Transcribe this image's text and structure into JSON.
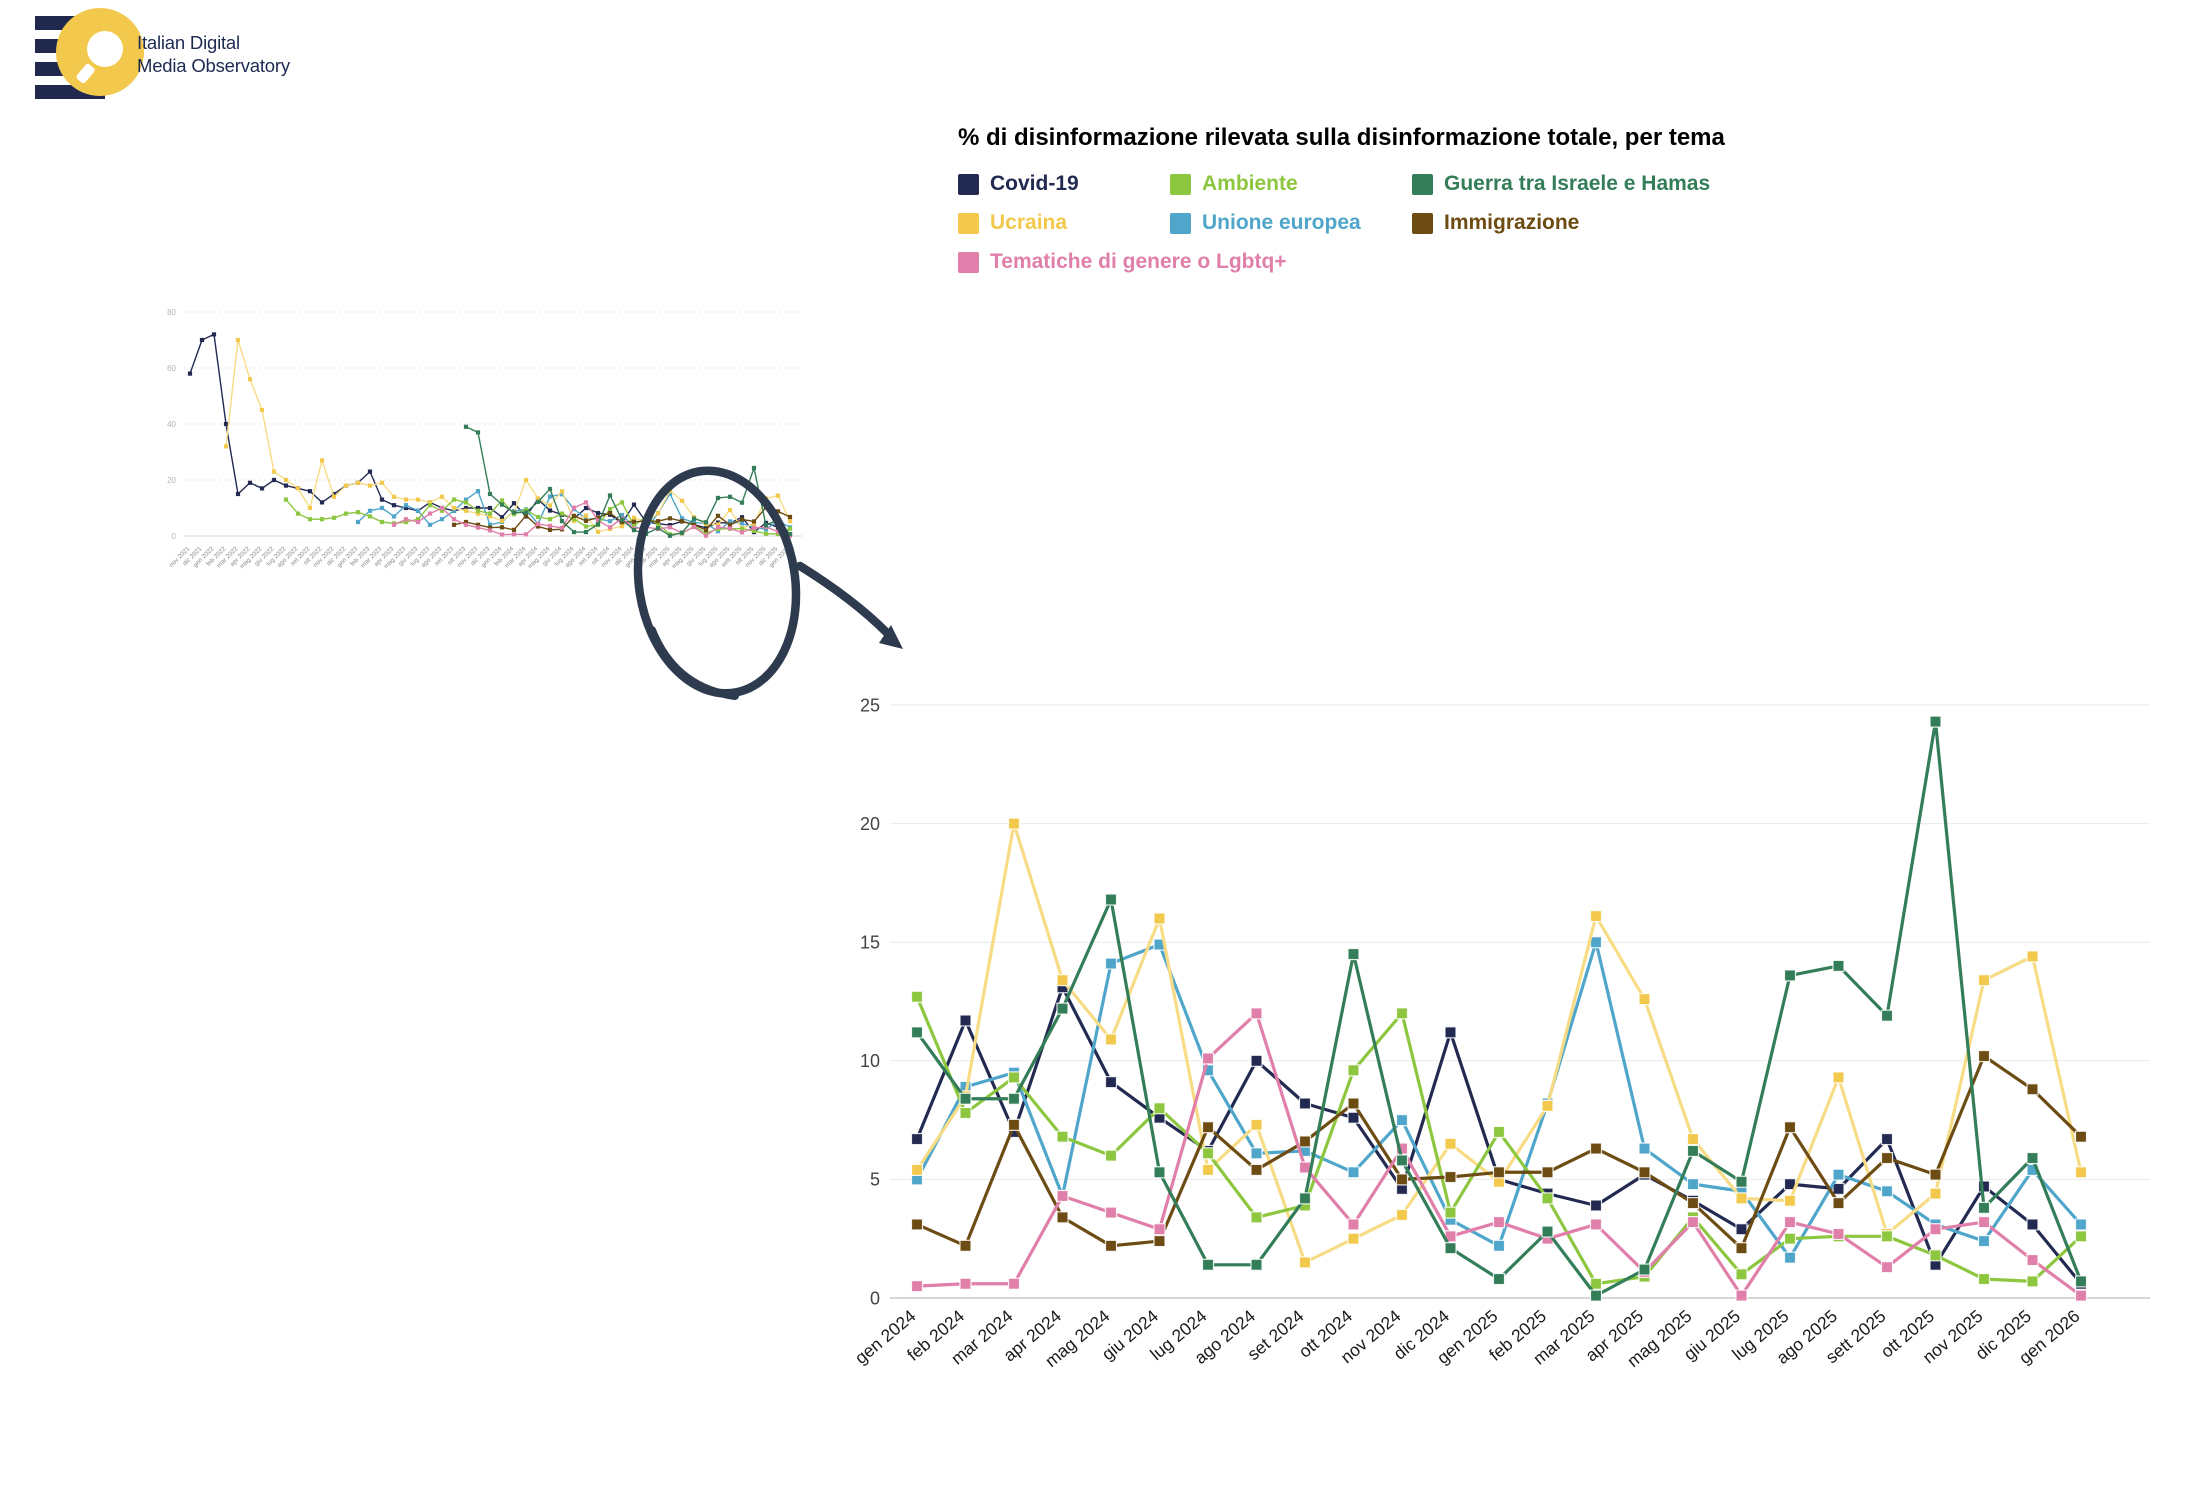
{
  "logo": {
    "line1": "Italian Digital",
    "line2": "Media Observatory"
  },
  "title": "% di disinformazione rilevata sulla disinformazione totale, per tema",
  "legend": [
    {
      "label": "Covid-19",
      "color": "#232a52"
    },
    {
      "label": "Ambiente",
      "color": "#8dc63f"
    },
    {
      "label": "Guerra tra Israele e Hamas",
      "color": "#337d58"
    },
    {
      "label": "Ucraina",
      "color": "#f2c94c"
    },
    {
      "label": "Unione europea",
      "color": "#4fa6ca"
    },
    {
      "label": "Immigrazione",
      "color": "#6d4c13"
    },
    {
      "label": "Tematiche di genere o Lgbtq+",
      "color": "#e07fa9"
    }
  ],
  "chart_data": [
    {
      "type": "line",
      "title": "% di disinformazione rilevata sulla disinformazione totale, per tema",
      "xlabel": "",
      "ylabel": "",
      "ylim": [
        0,
        25
      ],
      "yticks": [
        0,
        5,
        10,
        15,
        20,
        25
      ],
      "grid": true,
      "legend_position": "top",
      "categories": [
        "gen 2024",
        "feb 2024",
        "mar 2024",
        "apr 2024",
        "mag 2024",
        "giu 2024",
        "lug 2024",
        "ago 2024",
        "set 2024",
        "ott 2024",
        "nov 2024",
        "dic 2024",
        "gen 2025",
        "feb 2025",
        "mar 2025",
        "apr 2025",
        "mag 2025",
        "giu 2025",
        "lug 2025",
        "ago 2025",
        "sett 2025",
        "ott 2025",
        "nov 2025",
        "dic 2025",
        "gen 2026"
      ],
      "series": [
        {
          "name": "Covid-19",
          "color": "#232a52",
          "values": [
            6.7,
            11.7,
            7.0,
            13.1,
            9.1,
            7.6,
            6.2,
            10.0,
            8.2,
            7.6,
            4.6,
            11.2,
            5.0,
            4.4,
            3.9,
            5.2,
            4.1,
            2.9,
            4.8,
            4.6,
            6.7,
            1.4,
            4.7,
            3.1,
            0.6
          ]
        },
        {
          "name": "Ambiente",
          "color": "#8dc63f",
          "values": [
            12.7,
            7.8,
            9.3,
            6.8,
            6.0,
            8.0,
            6.1,
            3.4,
            3.9,
            9.6,
            12.0,
            3.6,
            7.0,
            4.2,
            0.6,
            0.9,
            3.4,
            1.0,
            2.5,
            2.6,
            2.6,
            1.8,
            0.8,
            0.7,
            2.6
          ]
        },
        {
          "name": "Guerra tra Israele e Hamas",
          "color": "#337d58",
          "values": [
            11.2,
            8.4,
            8.4,
            12.2,
            16.8,
            5.3,
            1.4,
            1.4,
            4.2,
            14.5,
            5.8,
            2.1,
            0.8,
            2.8,
            0.1,
            1.2,
            6.2,
            4.9,
            13.6,
            14.0,
            11.9,
            24.3,
            3.8,
            5.9,
            0.7
          ]
        },
        {
          "name": "Ucraina",
          "color": "#f2c94c",
          "line_color": "#f7dc85",
          "values": [
            5.4,
            8.5,
            20.0,
            13.4,
            10.9,
            16.0,
            5.4,
            7.3,
            1.5,
            2.5,
            3.5,
            6.5,
            4.9,
            8.1,
            16.1,
            12.6,
            6.7,
            4.2,
            4.1,
            9.3,
            2.7,
            4.4,
            13.4,
            14.4,
            5.3
          ]
        },
        {
          "name": "Unione europea",
          "color": "#4fa6ca",
          "values": [
            5.0,
            8.9,
            9.5,
            4.3,
            14.1,
            14.9,
            9.6,
            6.1,
            6.2,
            5.3,
            7.5,
            3.3,
            2.2,
            8.2,
            15.0,
            6.3,
            4.8,
            4.5,
            1.7,
            5.2,
            4.5,
            3.1,
            2.4,
            5.4,
            3.1
          ]
        },
        {
          "name": "Immigrazione",
          "color": "#6d4c13",
          "values": [
            3.1,
            2.2,
            7.3,
            3.4,
            2.2,
            2.4,
            7.2,
            5.4,
            6.6,
            8.2,
            5.0,
            5.1,
            5.3,
            5.3,
            6.3,
            5.3,
            4.0,
            2.1,
            7.2,
            4.0,
            5.9,
            5.2,
            10.2,
            8.8,
            6.8
          ]
        },
        {
          "name": "Tematiche di genere o Lgbtq+",
          "color": "#e07fa9",
          "values": [
            0.5,
            0.6,
            0.6,
            4.3,
            3.6,
            2.9,
            10.1,
            12.0,
            5.5,
            3.1,
            6.3,
            2.6,
            3.2,
            2.5,
            3.1,
            1.1,
            3.2,
            0.1,
            3.2,
            2.7,
            1.3,
            2.9,
            3.2,
            1.6,
            0.1
          ]
        }
      ]
    },
    {
      "type": "line",
      "role": "thumbnail-full-history",
      "xlabel": "",
      "ylabel": "",
      "ylim": [
        0,
        80
      ],
      "yticks": [
        0,
        20,
        40,
        60,
        80
      ],
      "grid": true,
      "categories": [
        "nov 2021",
        "dic 2021",
        "gen 2022",
        "feb 2022",
        "mar 2022",
        "apr 2022",
        "mag 2022",
        "giu 2022",
        "lug 2022",
        "ago 2022",
        "set 2022",
        "ott 2022",
        "nov 2022",
        "dic 2022",
        "gen 2023",
        "feb 2023",
        "mar 2023",
        "apr 2023",
        "mag 2023",
        "giu 2023",
        "lug 2023",
        "ago 2023",
        "set 2023",
        "ott 2023",
        "nov 2023",
        "dic 2023",
        "gen 2024",
        "feb 2024",
        "mar 2024",
        "apr 2024",
        "mag 2024",
        "giu 2024",
        "lug 2024",
        "ago 2024",
        "set 2024",
        "ott 2024",
        "nov 2024",
        "dic 2024",
        "gen 2025",
        "feb 2025",
        "mar 2025",
        "apr 2025",
        "mag 2025",
        "giu 2025",
        "lug 2025",
        "ago 2025",
        "sett 2025",
        "ott 2025",
        "nov 2025",
        "dic 2025",
        "gen 2026"
      ],
      "series": [
        {
          "name": "Covid-19",
          "color": "#232a52",
          "values": [
            58,
            70,
            72,
            40,
            15,
            19,
            17,
            20,
            18,
            17,
            16,
            12,
            15,
            18,
            19,
            23,
            13,
            11,
            10,
            9,
            12,
            10,
            9,
            10,
            10,
            10,
            6.7,
            11.7,
            7.0,
            13.1,
            9.1,
            7.6,
            6.2,
            10.0,
            8.2,
            7.6,
            4.6,
            11.2,
            5.0,
            4.4,
            3.9,
            5.2,
            4.1,
            2.9,
            4.8,
            4.6,
            6.7,
            1.4,
            4.7,
            3.1,
            0.6
          ]
        },
        {
          "name": "Ambiente",
          "color": "#8dc63f",
          "values": [
            null,
            null,
            null,
            null,
            null,
            null,
            null,
            null,
            13,
            8,
            6,
            6,
            6.5,
            8,
            8.5,
            7,
            5,
            4.5,
            5,
            6,
            11,
            9,
            13,
            12,
            9,
            8,
            12.7,
            7.8,
            9.3,
            6.8,
            6.0,
            8.0,
            6.1,
            3.4,
            3.9,
            9.6,
            12.0,
            3.6,
            7.0,
            4.2,
            0.6,
            0.9,
            3.4,
            1.0,
            2.5,
            2.6,
            2.6,
            1.8,
            0.8,
            0.7,
            2.6
          ]
        },
        {
          "name": "Guerra tra Israele e Hamas",
          "color": "#337d58",
          "values": [
            null,
            null,
            null,
            null,
            null,
            null,
            null,
            null,
            null,
            null,
            null,
            null,
            null,
            null,
            null,
            null,
            null,
            null,
            null,
            null,
            null,
            null,
            null,
            39,
            37,
            15,
            11.2,
            8.4,
            8.4,
            12.2,
            16.8,
            5.3,
            1.4,
            1.4,
            4.2,
            14.5,
            5.8,
            2.1,
            0.8,
            2.8,
            0.1,
            1.2,
            6.2,
            4.9,
            13.6,
            14.0,
            11.9,
            24.3,
            3.8,
            5.9,
            0.7
          ]
        },
        {
          "name": "Ucraina",
          "color": "#f2c94c",
          "line_color": "#f7dc85",
          "values": [
            null,
            null,
            null,
            32,
            70,
            56,
            45,
            23,
            20,
            17,
            10,
            27,
            14,
            18,
            19,
            18,
            19,
            14,
            13,
            13,
            12,
            14,
            10,
            9,
            8,
            7,
            5.4,
            8.5,
            20.0,
            13.4,
            10.9,
            16.0,
            5.4,
            7.3,
            1.5,
            2.5,
            3.5,
            6.5,
            4.9,
            8.1,
            16.1,
            12.6,
            6.7,
            4.2,
            4.1,
            9.3,
            2.7,
            4.4,
            13.4,
            14.4,
            5.3
          ]
        },
        {
          "name": "Unione europea",
          "color": "#4fa6ca",
          "values": [
            null,
            null,
            null,
            null,
            null,
            null,
            null,
            null,
            null,
            null,
            null,
            null,
            null,
            null,
            5,
            9,
            10,
            7,
            11,
            9,
            4,
            6,
            9,
            13,
            16,
            4,
            5.0,
            8.9,
            9.5,
            4.3,
            14.1,
            14.9,
            9.6,
            6.1,
            6.2,
            5.3,
            7.5,
            3.3,
            2.2,
            8.2,
            15.0,
            6.3,
            4.8,
            4.5,
            1.7,
            5.2,
            4.5,
            3.1,
            2.4,
            5.4,
            3.1
          ]
        },
        {
          "name": "Immigrazione",
          "color": "#6d4c13",
          "values": [
            null,
            null,
            null,
            null,
            null,
            null,
            null,
            null,
            null,
            null,
            null,
            null,
            null,
            null,
            null,
            null,
            null,
            null,
            null,
            null,
            null,
            null,
            4,
            5,
            4,
            3,
            3.1,
            2.2,
            7.3,
            3.4,
            2.2,
            2.4,
            7.2,
            5.4,
            6.6,
            8.2,
            5.0,
            5.1,
            5.3,
            5.3,
            6.3,
            5.3,
            4.0,
            2.1,
            7.2,
            4.0,
            5.9,
            5.2,
            10.2,
            8.8,
            6.8
          ]
        },
        {
          "name": "Tematiche di genere o Lgbtq+",
          "color": "#e07fa9",
          "values": [
            null,
            null,
            null,
            null,
            null,
            null,
            null,
            null,
            null,
            null,
            null,
            null,
            null,
            null,
            null,
            null,
            null,
            4,
            6,
            5,
            8,
            10,
            6,
            4,
            3,
            2,
            0.5,
            0.6,
            0.6,
            4.3,
            3.6,
            2.9,
            10.1,
            12.0,
            5.5,
            3.1,
            6.3,
            2.6,
            3.2,
            2.5,
            3.1,
            1.1,
            3.2,
            0.1,
            3.2,
            2.7,
            1.3,
            2.9,
            3.2,
            1.6,
            0.1
          ]
        }
      ]
    }
  ]
}
